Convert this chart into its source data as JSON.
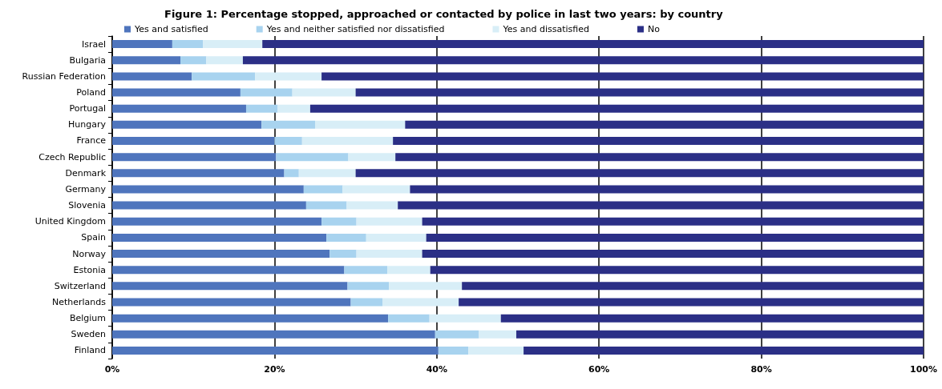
{
  "chart_data": {
    "type": "bar",
    "orientation": "horizontal",
    "stacked": true,
    "title": "Figure 1: Percentage stopped, approached or contacted by police in last two years: by country",
    "categories": [
      "Israel",
      "Bulgaria",
      "Russian Federation",
      "Poland",
      "Portugal",
      "Hungary",
      "France",
      "Czech Republic",
      "Denmark",
      "Germany",
      "Slovenia",
      "United Kingdom",
      "Spain",
      "Norway",
      "Estonia",
      "Switzerland",
      "Netherlands",
      "Belgium",
      "Sweden",
      "Finland"
    ],
    "series": [
      {
        "name": "Yes and satisfied",
        "color": "#4f75bd",
        "values": [
          7.4,
          8.4,
          9.8,
          15.8,
          16.5,
          18.4,
          20.0,
          20.2,
          21.2,
          23.6,
          23.9,
          25.8,
          26.4,
          26.8,
          28.6,
          29.0,
          29.4,
          34.0,
          39.8,
          40.2
        ]
      },
      {
        "name": "Yes and neither satisfied nor dissatisfied",
        "color": "#a8d3ef",
        "values": [
          3.8,
          3.2,
          7.8,
          6.4,
          3.9,
          6.6,
          3.4,
          8.9,
          1.8,
          4.8,
          5.0,
          4.3,
          4.9,
          3.3,
          5.3,
          5.1,
          3.9,
          5.1,
          5.4,
          3.7
        ]
      },
      {
        "name": "Yes and dissatisfied",
        "color": "#d8eef7",
        "values": [
          7.3,
          4.5,
          8.2,
          7.8,
          4.0,
          11.1,
          11.2,
          5.8,
          7.0,
          8.3,
          6.3,
          8.1,
          7.4,
          8.1,
          5.3,
          9.0,
          9.4,
          8.8,
          4.6,
          6.8
        ]
      },
      {
        "name": "No",
        "color": "#2b2f86",
        "values": [
          81.5,
          83.9,
          74.2,
          70.0,
          75.6,
          63.9,
          65.4,
          65.1,
          70.0,
          63.3,
          64.8,
          61.8,
          61.3,
          61.8,
          60.8,
          56.9,
          57.3,
          52.1,
          50.2,
          49.3
        ]
      }
    ],
    "xlim": [
      0,
      100
    ],
    "xticks": [
      {
        "value": 0,
        "label": "0%"
      },
      {
        "value": 20,
        "label": "20%"
      },
      {
        "value": 40,
        "label": "40%"
      },
      {
        "value": 60,
        "label": "60%"
      },
      {
        "value": 80,
        "label": "80%"
      },
      {
        "value": 100,
        "label": "100%"
      }
    ],
    "grid": "x",
    "legend": "top"
  }
}
